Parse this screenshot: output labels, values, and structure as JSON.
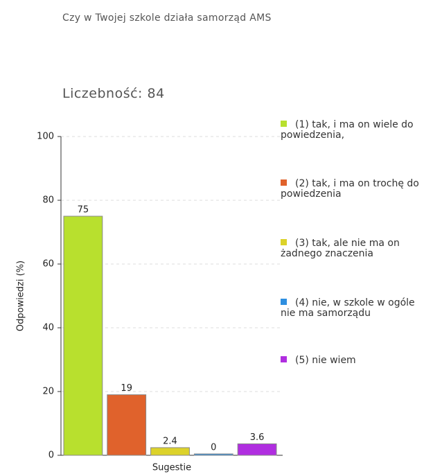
{
  "chart_data": {
    "type": "bar",
    "title": "Czy w Twojej szkole działa samorząd AMS",
    "subtitle": "Liczebność: 84",
    "y_label": "Odpowiedzi (%)",
    "categories": [
      "Sugestie"
    ],
    "series": [
      {
        "name": "(1) tak, i ma on wiele do powiedzenia,",
        "color": "#b8e02e",
        "values": [
          75
        ]
      },
      {
        "name": "(2) tak, i ma on trochę do powiedzenia",
        "color": "#e0622c",
        "values": [
          19
        ]
      },
      {
        "name": "(3) tak, ale nie ma on żadnego znaczenia",
        "color": "#dcd22a",
        "values": [
          2.4
        ]
      },
      {
        "name": "(4) nie, w szkole w ogóle nie ma samorządu",
        "color": "#2e8fe0",
        "values": [
          0
        ]
      },
      {
        "name": "(5) nie wiem",
        "color": "#b02ee0",
        "values": [
          3.6
        ]
      }
    ],
    "ylim": [
      0,
      100
    ],
    "yticks": [
      0,
      20,
      40,
      60,
      80,
      100
    ],
    "grid": true,
    "legend": "right"
  }
}
